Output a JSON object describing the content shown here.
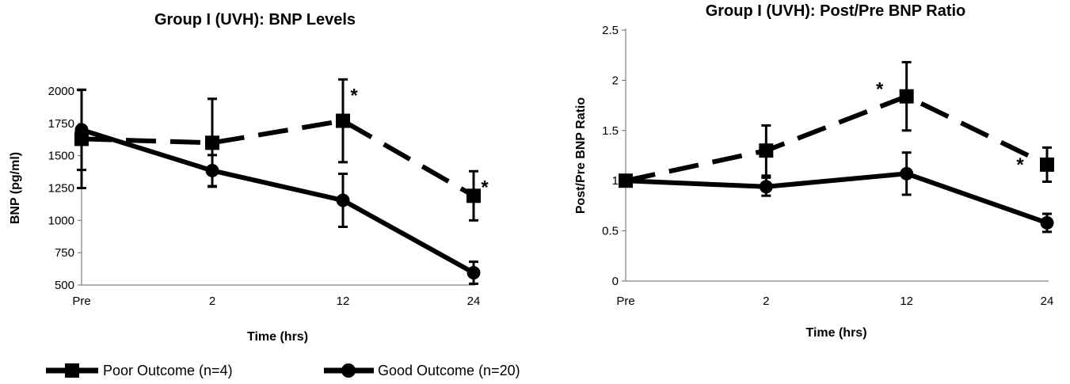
{
  "legend": {
    "poor_label": "Poor Outcome (n=4)",
    "good_label": "Good Outcome (n=20)"
  },
  "chart_data": [
    {
      "type": "line",
      "title": "Group I (UVH): BNP Levels",
      "xlabel": "Time (hrs)",
      "ylabel": "BNP (pg/ml)",
      "categories": [
        "Pre",
        "2",
        "12",
        "24"
      ],
      "category_positions": [
        0,
        2,
        12,
        24
      ],
      "ylim": [
        500,
        2000
      ],
      "yticks": [
        500,
        750,
        1000,
        1250,
        1500,
        1750,
        2000
      ],
      "series": [
        {
          "name": "Poor Outcome (n=4)",
          "style": "dashed",
          "marker": "square",
          "values": [
            1630,
            1600,
            1770,
            1190
          ],
          "errors": [
            380,
            340,
            320,
            190
          ]
        },
        {
          "name": "Good Outcome (n=20)",
          "style": "solid",
          "marker": "circle",
          "values": [
            1700,
            1385,
            1155,
            595
          ],
          "errors": [
            310,
            120,
            205,
            85
          ]
        }
      ],
      "annotations": [
        {
          "x": "12",
          "text": "*"
        },
        {
          "x": "24",
          "text": "*"
        }
      ],
      "legend_position": "bottom"
    },
    {
      "type": "line",
      "title": "Group I (UVH): Post/Pre BNP Ratio",
      "xlabel": "Time (hrs)",
      "ylabel": "Post/Pre BNP Ratio",
      "categories": [
        "Pre",
        "2",
        "12",
        "24"
      ],
      "category_positions": [
        0,
        2,
        12,
        24
      ],
      "ylim": [
        0,
        2.5
      ],
      "yticks": [
        0,
        0.5,
        1,
        1.5,
        2,
        2.5
      ],
      "series": [
        {
          "name": "Poor Outcome (n=4)",
          "style": "dashed",
          "marker": "square",
          "values": [
            1.0,
            1.3,
            1.84,
            1.16
          ],
          "errors": [
            0,
            0.25,
            0.34,
            0.17
          ]
        },
        {
          "name": "Good Outcome (n=20)",
          "style": "solid",
          "marker": "circle",
          "values": [
            1.0,
            0.94,
            1.07,
            0.58
          ],
          "errors": [
            0,
            0.09,
            0.21,
            0.09
          ]
        }
      ],
      "annotations": [
        {
          "x": "12",
          "text": "*"
        },
        {
          "x": "24",
          "text": "*"
        }
      ],
      "legend_position": "bottom"
    }
  ]
}
